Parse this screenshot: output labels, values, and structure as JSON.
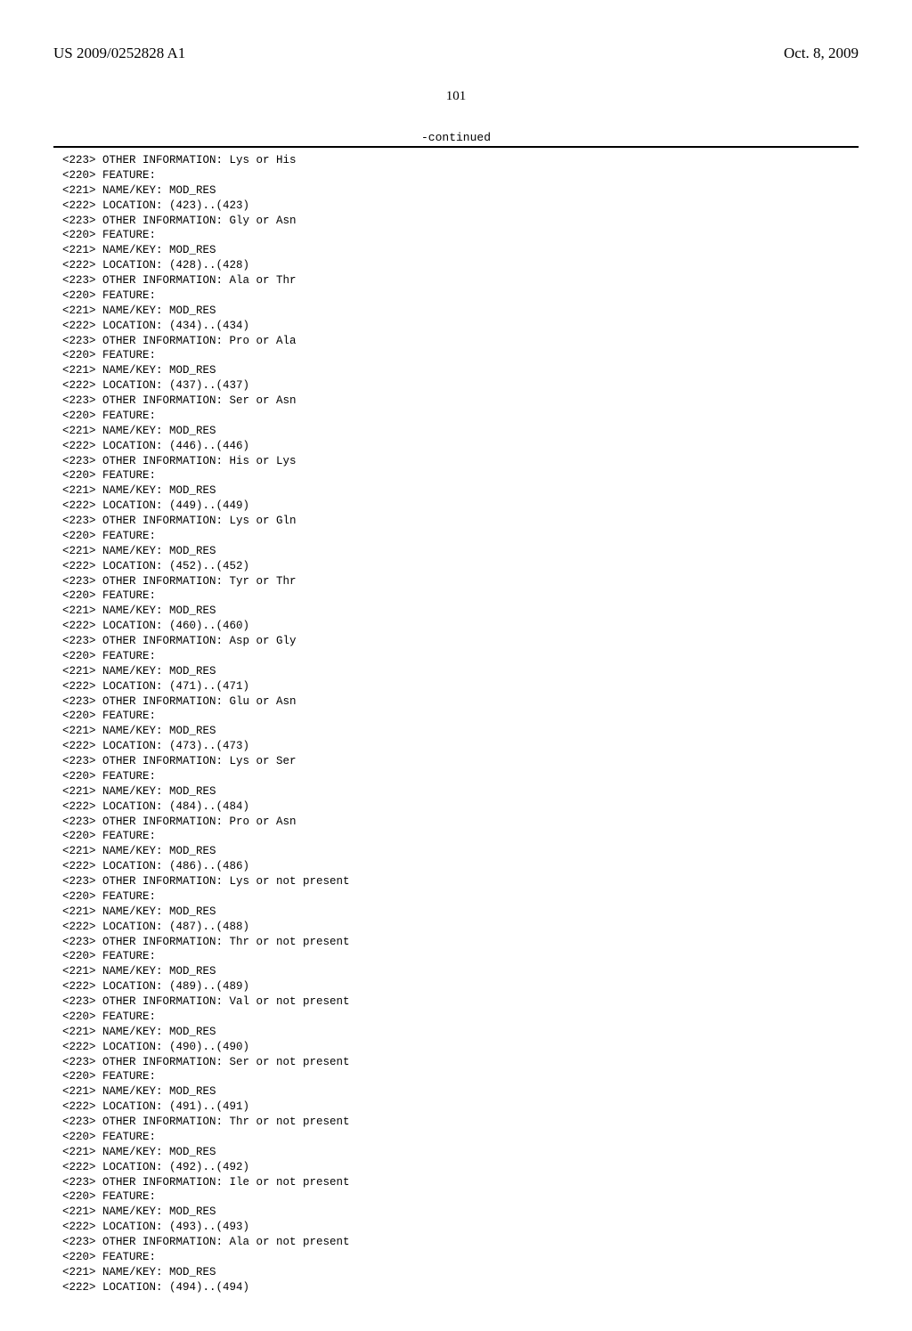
{
  "header": {
    "patent_id": "US 2009/0252828 A1",
    "date": "Oct. 8, 2009"
  },
  "page_number": "101",
  "continued_label": "-continued",
  "entries": [
    {
      "tag": "<223>",
      "text": "OTHER INFORMATION: Lys or His"
    },
    {
      "tag": "<220>",
      "text": "FEATURE:"
    },
    {
      "tag": "<221>",
      "text": "NAME/KEY: MOD_RES"
    },
    {
      "tag": "<222>",
      "text": "LOCATION: (423)..(423)"
    },
    {
      "tag": "<223>",
      "text": "OTHER INFORMATION: Gly or Asn"
    },
    {
      "tag": "<220>",
      "text": "FEATURE:"
    },
    {
      "tag": "<221>",
      "text": "NAME/KEY: MOD_RES"
    },
    {
      "tag": "<222>",
      "text": "LOCATION: (428)..(428)"
    },
    {
      "tag": "<223>",
      "text": "OTHER INFORMATION: Ala or Thr"
    },
    {
      "tag": "<220>",
      "text": "FEATURE:"
    },
    {
      "tag": "<221>",
      "text": "NAME/KEY: MOD_RES"
    },
    {
      "tag": "<222>",
      "text": "LOCATION: (434)..(434)"
    },
    {
      "tag": "<223>",
      "text": "OTHER INFORMATION: Pro or Ala"
    },
    {
      "tag": "<220>",
      "text": "FEATURE:"
    },
    {
      "tag": "<221>",
      "text": "NAME/KEY: MOD_RES"
    },
    {
      "tag": "<222>",
      "text": "LOCATION: (437)..(437)"
    },
    {
      "tag": "<223>",
      "text": "OTHER INFORMATION: Ser or Asn"
    },
    {
      "tag": "<220>",
      "text": "FEATURE:"
    },
    {
      "tag": "<221>",
      "text": "NAME/KEY: MOD_RES"
    },
    {
      "tag": "<222>",
      "text": "LOCATION: (446)..(446)"
    },
    {
      "tag": "<223>",
      "text": "OTHER INFORMATION: His or Lys"
    },
    {
      "tag": "<220>",
      "text": "FEATURE:"
    },
    {
      "tag": "<221>",
      "text": "NAME/KEY: MOD_RES"
    },
    {
      "tag": "<222>",
      "text": "LOCATION: (449)..(449)"
    },
    {
      "tag": "<223>",
      "text": "OTHER INFORMATION: Lys or Gln"
    },
    {
      "tag": "<220>",
      "text": "FEATURE:"
    },
    {
      "tag": "<221>",
      "text": "NAME/KEY: MOD_RES"
    },
    {
      "tag": "<222>",
      "text": "LOCATION: (452)..(452)"
    },
    {
      "tag": "<223>",
      "text": "OTHER INFORMATION: Tyr or Thr"
    },
    {
      "tag": "<220>",
      "text": "FEATURE:"
    },
    {
      "tag": "<221>",
      "text": "NAME/KEY: MOD_RES"
    },
    {
      "tag": "<222>",
      "text": "LOCATION: (460)..(460)"
    },
    {
      "tag": "<223>",
      "text": "OTHER INFORMATION: Asp or Gly"
    },
    {
      "tag": "<220>",
      "text": "FEATURE:"
    },
    {
      "tag": "<221>",
      "text": "NAME/KEY: MOD_RES"
    },
    {
      "tag": "<222>",
      "text": "LOCATION: (471)..(471)"
    },
    {
      "tag": "<223>",
      "text": "OTHER INFORMATION: Glu or Asn"
    },
    {
      "tag": "<220>",
      "text": "FEATURE:"
    },
    {
      "tag": "<221>",
      "text": "NAME/KEY: MOD_RES"
    },
    {
      "tag": "<222>",
      "text": "LOCATION: (473)..(473)"
    },
    {
      "tag": "<223>",
      "text": "OTHER INFORMATION: Lys or Ser"
    },
    {
      "tag": "<220>",
      "text": "FEATURE:"
    },
    {
      "tag": "<221>",
      "text": "NAME/KEY: MOD_RES"
    },
    {
      "tag": "<222>",
      "text": "LOCATION: (484)..(484)"
    },
    {
      "tag": "<223>",
      "text": "OTHER INFORMATION: Pro or Asn"
    },
    {
      "tag": "<220>",
      "text": "FEATURE:"
    },
    {
      "tag": "<221>",
      "text": "NAME/KEY: MOD_RES"
    },
    {
      "tag": "<222>",
      "text": "LOCATION: (486)..(486)"
    },
    {
      "tag": "<223>",
      "text": "OTHER INFORMATION: Lys or not present"
    },
    {
      "tag": "<220>",
      "text": "FEATURE:"
    },
    {
      "tag": "<221>",
      "text": "NAME/KEY: MOD_RES"
    },
    {
      "tag": "<222>",
      "text": "LOCATION: (487)..(488)"
    },
    {
      "tag": "<223>",
      "text": "OTHER INFORMATION: Thr or not present"
    },
    {
      "tag": "<220>",
      "text": "FEATURE:"
    },
    {
      "tag": "<221>",
      "text": "NAME/KEY: MOD_RES"
    },
    {
      "tag": "<222>",
      "text": "LOCATION: (489)..(489)"
    },
    {
      "tag": "<223>",
      "text": "OTHER INFORMATION: Val or not present"
    },
    {
      "tag": "<220>",
      "text": "FEATURE:"
    },
    {
      "tag": "<221>",
      "text": "NAME/KEY: MOD_RES"
    },
    {
      "tag": "<222>",
      "text": "LOCATION: (490)..(490)"
    },
    {
      "tag": "<223>",
      "text": "OTHER INFORMATION: Ser or not present"
    },
    {
      "tag": "<220>",
      "text": "FEATURE:"
    },
    {
      "tag": "<221>",
      "text": "NAME/KEY: MOD_RES"
    },
    {
      "tag": "<222>",
      "text": "LOCATION: (491)..(491)"
    },
    {
      "tag": "<223>",
      "text": "OTHER INFORMATION: Thr or not present"
    },
    {
      "tag": "<220>",
      "text": "FEATURE:"
    },
    {
      "tag": "<221>",
      "text": "NAME/KEY: MOD_RES"
    },
    {
      "tag": "<222>",
      "text": "LOCATION: (492)..(492)"
    },
    {
      "tag": "<223>",
      "text": "OTHER INFORMATION: Ile or not present"
    },
    {
      "tag": "<220>",
      "text": "FEATURE:"
    },
    {
      "tag": "<221>",
      "text": "NAME/KEY: MOD_RES"
    },
    {
      "tag": "<222>",
      "text": "LOCATION: (493)..(493)"
    },
    {
      "tag": "<223>",
      "text": "OTHER INFORMATION: Ala or not present"
    },
    {
      "tag": "<220>",
      "text": "FEATURE:"
    },
    {
      "tag": "<221>",
      "text": "NAME/KEY: MOD_RES"
    },
    {
      "tag": "<222>",
      "text": "LOCATION: (494)..(494)"
    }
  ]
}
